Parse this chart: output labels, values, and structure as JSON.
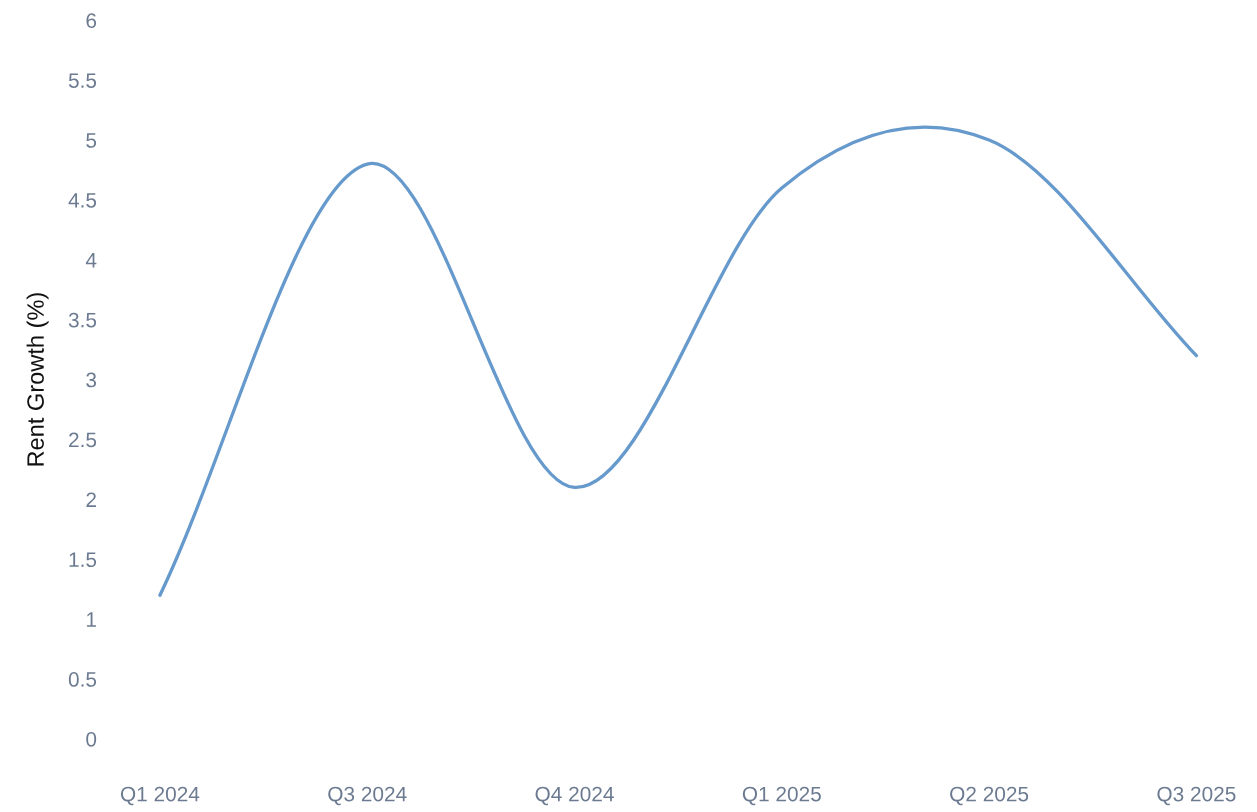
{
  "chart_data": {
    "type": "line",
    "ylabel": "Rent Growth (%)",
    "categories": [
      "Q1 2024",
      "Q3 2024",
      "Q4 2024",
      "Q1 2025",
      "Q2 2025",
      "Q3 2025"
    ],
    "series": [
      {
        "color": "#6699cc",
        "values": [
          1.2,
          4.8,
          2.1,
          4.6,
          5.0,
          3.2
        ]
      }
    ],
    "ylim": [
      0,
      6
    ],
    "yticks": [
      0,
      0.5,
      1,
      1.5,
      2,
      2.5,
      3,
      3.5,
      4,
      4.5,
      5,
      5.5,
      6
    ],
    "marker": "none",
    "line_style": "solid"
  }
}
